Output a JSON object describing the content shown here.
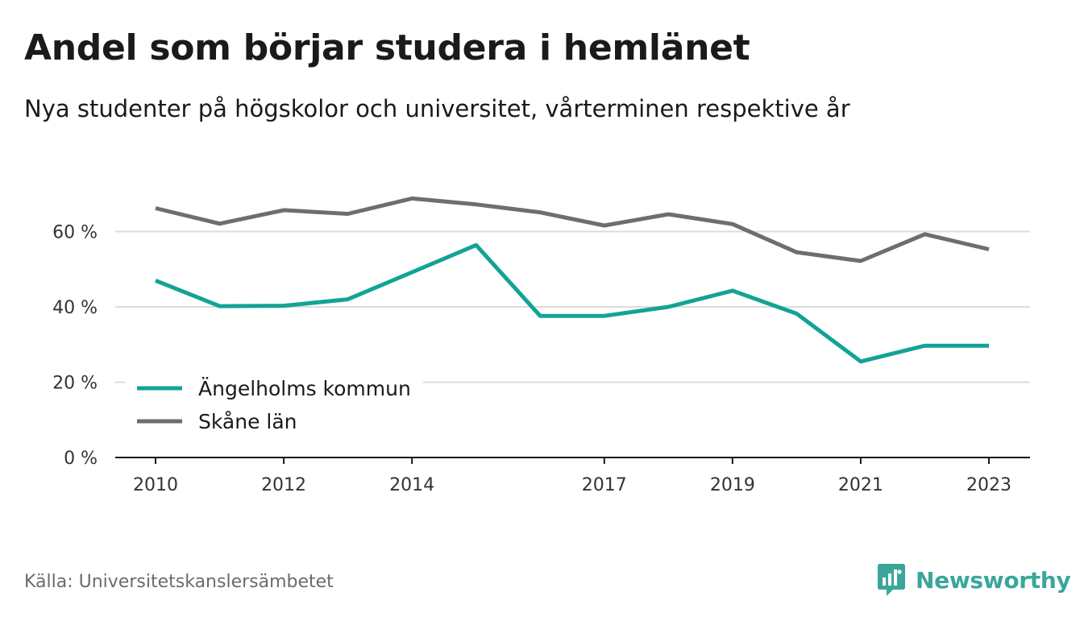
{
  "header": {
    "title": "Andel som börjar studera i hemlänet",
    "subtitle": "Nya studenter på högskolor och universitet, vårterminen respektive år"
  },
  "footer": {
    "source": "Källa: Universitetskanslersämbetet",
    "brand": "Newsworthy",
    "brand_icon": "newsworthy-logo-icon"
  },
  "colors": {
    "series_1": "#13a396",
    "series_2": "#6e6d74",
    "grid": "#dcdcdc",
    "axis": "#1a1a1a",
    "brand": "#3aa69b"
  },
  "chart_data": {
    "type": "line",
    "x": [
      2010,
      2011,
      2012,
      2013,
      2014,
      2015,
      2016,
      2017,
      2018,
      2019,
      2020,
      2021,
      2022,
      2023
    ],
    "x_tick_labels": [
      "2010",
      "2012",
      "2014",
      "2017",
      "2019",
      "2021",
      "2023"
    ],
    "y_ticks": [
      0,
      20,
      40,
      60
    ],
    "y_tick_labels": [
      "0 %",
      "20 %",
      "40 %",
      "60 %"
    ],
    "ylim": [
      0,
      70
    ],
    "grid": true,
    "legend_position": "bottom-left",
    "series": [
      {
        "name": "Ängelholms kommun",
        "color": "#13a396",
        "values": [
          47,
          40.2,
          40.3,
          42,
          49.2,
          56.4,
          37.6,
          37.6,
          40,
          44.3,
          38.2,
          25.5,
          29.7,
          29.7
        ]
      },
      {
        "name": "Skåne län",
        "color": "#6e6d74",
        "values": [
          66.2,
          62.1,
          65.7,
          64.7,
          68.8,
          67.2,
          65.1,
          61.6,
          64.6,
          62,
          54.5,
          52.2,
          59.3,
          55.3
        ]
      }
    ]
  }
}
